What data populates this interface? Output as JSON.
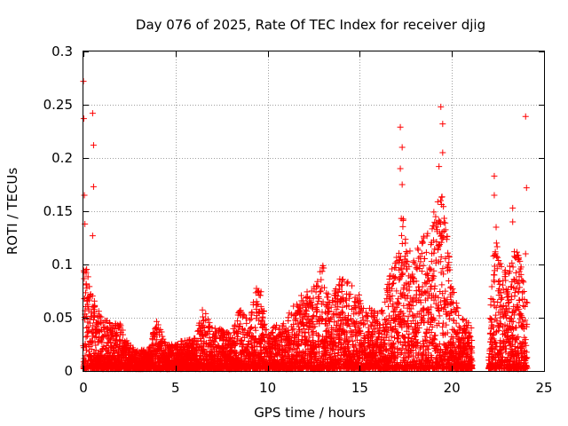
{
  "chart_data": {
    "type": "scatter",
    "title": "Day 076 of 2025, Rate Of TEC Index for receiver djig",
    "xlabel": "GPS time / hours",
    "ylabel": "ROTI / TECUs",
    "xlim": [
      0,
      25
    ],
    "ylim": [
      0,
      0.3
    ],
    "x_ticks": [
      0,
      5,
      10,
      15,
      20,
      25
    ],
    "y_ticks": [
      0,
      0.05,
      0.1,
      0.15,
      0.2,
      0.25,
      0.3
    ],
    "x_tick_labels": [
      "0",
      "5",
      "10",
      "15",
      "20",
      "25"
    ],
    "y_tick_labels": [
      "0",
      "0.05",
      "0.1",
      "0.15",
      "0.2",
      "0.25",
      "0.3"
    ],
    "grid": true,
    "marker": "+",
    "color": "#ff0000",
    "coverage": [
      [
        0,
        21.1
      ],
      [
        22.0,
        24.1
      ]
    ],
    "envelope": [
      [
        0.0,
        0.11
      ],
      [
        0.5,
        0.07
      ],
      [
        1.0,
        0.05
      ],
      [
        1.5,
        0.045
      ],
      [
        2.0,
        0.045
      ],
      [
        2.5,
        0.025
      ],
      [
        3.0,
        0.02
      ],
      [
        3.5,
        0.02
      ],
      [
        4.0,
        0.05
      ],
      [
        4.5,
        0.025
      ],
      [
        5.0,
        0.025
      ],
      [
        5.5,
        0.03
      ],
      [
        6.0,
        0.03
      ],
      [
        6.5,
        0.06
      ],
      [
        7.0,
        0.04
      ],
      [
        7.5,
        0.04
      ],
      [
        8.0,
        0.035
      ],
      [
        8.5,
        0.06
      ],
      [
        9.0,
        0.045
      ],
      [
        9.5,
        0.09
      ],
      [
        10.0,
        0.035
      ],
      [
        10.5,
        0.045
      ],
      [
        11.0,
        0.05
      ],
      [
        11.5,
        0.065
      ],
      [
        12.0,
        0.075
      ],
      [
        12.5,
        0.08
      ],
      [
        13.0,
        0.1
      ],
      [
        13.5,
        0.075
      ],
      [
        14.0,
        0.09
      ],
      [
        14.5,
        0.085
      ],
      [
        15.0,
        0.07
      ],
      [
        15.5,
        0.06
      ],
      [
        16.0,
        0.055
      ],
      [
        16.5,
        0.085
      ],
      [
        17.0,
        0.11
      ],
      [
        17.3,
        0.16
      ],
      [
        17.6,
        0.12
      ],
      [
        18.0,
        0.11
      ],
      [
        18.5,
        0.13
      ],
      [
        19.0,
        0.15
      ],
      [
        19.4,
        0.18
      ],
      [
        19.8,
        0.12
      ],
      [
        20.0,
        0.08
      ],
      [
        20.5,
        0.05
      ],
      [
        21.0,
        0.045
      ],
      [
        22.0,
        0.03
      ],
      [
        22.3,
        0.13
      ],
      [
        22.7,
        0.11
      ],
      [
        23.0,
        0.09
      ],
      [
        23.5,
        0.12
      ],
      [
        24.0,
        0.08
      ]
    ],
    "outliers": [
      [
        0.0,
        0.272
      ],
      [
        0.02,
        0.237
      ],
      [
        0.05,
        0.165
      ],
      [
        0.08,
        0.138
      ],
      [
        0.5,
        0.242
      ],
      [
        0.55,
        0.212
      ],
      [
        0.55,
        0.173
      ],
      [
        0.5,
        0.127
      ],
      [
        17.2,
        0.229
      ],
      [
        17.3,
        0.21
      ],
      [
        17.2,
        0.19
      ],
      [
        17.3,
        0.175
      ],
      [
        19.4,
        0.248
      ],
      [
        19.5,
        0.232
      ],
      [
        19.5,
        0.205
      ],
      [
        19.3,
        0.192
      ],
      [
        22.3,
        0.183
      ],
      [
        22.3,
        0.165
      ],
      [
        22.4,
        0.135
      ],
      [
        23.3,
        0.153
      ],
      [
        23.3,
        0.14
      ],
      [
        24.0,
        0.239
      ],
      [
        24.05,
        0.172
      ],
      [
        24.0,
        0.11
      ]
    ]
  }
}
